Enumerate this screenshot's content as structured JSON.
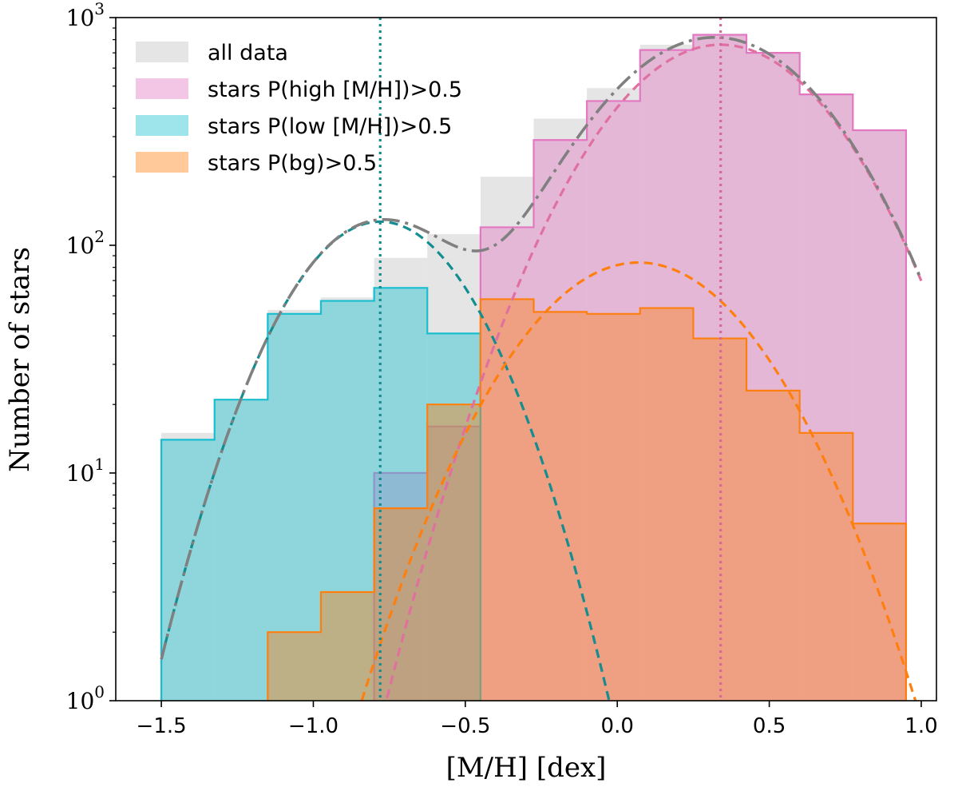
{
  "chart_data": {
    "type": "histogram",
    "xlabel": "[M/H] [dex]",
    "ylabel": "Number of stars",
    "xlim": [
      -1.65,
      1.05
    ],
    "ylim": [
      1,
      1000
    ],
    "yscale": "log",
    "grid": false,
    "legend_position": "top-left",
    "x_ticks": [
      -1.5,
      -1.0,
      -0.5,
      0.0,
      0.5,
      1.0
    ],
    "x_tick_labels": [
      "−1.5",
      "−1.0",
      "−0.5",
      "0.0",
      "0.5",
      "1.0"
    ],
    "y_ticks": [
      {
        "value": 1,
        "base": "10",
        "exp": "0"
      },
      {
        "value": 10,
        "base": "10",
        "exp": "1"
      },
      {
        "value": 100,
        "base": "10",
        "exp": "2"
      },
      {
        "value": 1000,
        "base": "10",
        "exp": "3"
      }
    ],
    "bin_edges": [
      -1.5,
      -1.325,
      -1.15,
      -0.975,
      -0.8,
      -0.625,
      -0.45,
      -0.275,
      -0.1,
      0.075,
      0.25,
      0.425,
      0.6,
      0.775,
      0.95
    ],
    "series": [
      {
        "name": "all data",
        "kind": "hist",
        "fill": "#d3d3d3",
        "fill_opacity": 0.6,
        "edge": "none",
        "counts": [
          15,
          21,
          52,
          59,
          88,
          112,
          200,
          360,
          490,
          760,
          850,
          700,
          460,
          320
        ]
      },
      {
        "name": "stars P(high [M/H])>0.5",
        "kind": "hist",
        "fill": "#e377c2",
        "fill_opacity": 0.42,
        "edge": "#e377c2",
        "counts": [
          0,
          0,
          0,
          0,
          10,
          16,
          120,
          290,
          430,
          720,
          840,
          700,
          460,
          320
        ]
      },
      {
        "name": "stars P(low [M/H])>0.5",
        "kind": "hist",
        "fill": "#17becf",
        "fill_opacity": 0.42,
        "edge": "#17becf",
        "counts": [
          14,
          21,
          50,
          57,
          65,
          41,
          0,
          0,
          0,
          0,
          0,
          0,
          0,
          0
        ]
      },
      {
        "name": "stars P(bg)>0.5",
        "kind": "hist",
        "fill": "#ff7f0e",
        "fill_opacity": 0.42,
        "edge": "#ff7f0e",
        "counts": [
          0,
          0,
          2,
          3,
          7,
          20,
          58,
          51,
          50,
          53,
          39,
          23,
          15,
          6
        ]
      }
    ],
    "curves": [
      {
        "name": "total model",
        "style": "dashdot",
        "color": "#808080",
        "components": [
          "low",
          "high",
          "bg"
        ]
      },
      {
        "name": "low [M/H] component",
        "style": "dashed",
        "color": "#138d90",
        "peak": 127,
        "mu": -0.78,
        "sigma": 0.242
      },
      {
        "name": "high [M/H] component",
        "style": "dashed",
        "color": "#e0709f",
        "peak": 760,
        "mu": 0.34,
        "sigma": 0.302
      },
      {
        "name": "background component",
        "style": "dashed",
        "color": "#ff7f0e",
        "peak": 84,
        "mu": 0.07,
        "sigma": 0.306
      }
    ],
    "vlines": [
      {
        "name": "low mean",
        "x": -0.78,
        "color": "#138d90",
        "style": "dotted"
      },
      {
        "name": "high mean",
        "x": 0.34,
        "color": "#d6679a",
        "style": "dotted"
      }
    ],
    "colors": {
      "all": "#d3d3d3",
      "high": "#e377c2",
      "low": "#17becf",
      "bg": "#ff7f0e",
      "grey_curve": "#808080",
      "teal_curve": "#138d90",
      "pink_curve": "#e0709f"
    }
  }
}
